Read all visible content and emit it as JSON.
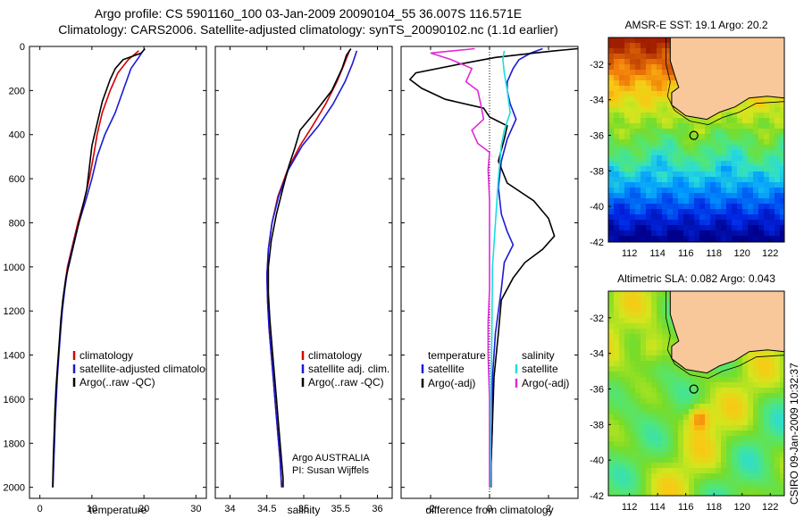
{
  "title_line1": "Argo profile: CS 5901160_100 03-Jan-2009 20090104_55 36.007S 116.571E",
  "title_line2": "Climatology: CARS2006. Satellite-adjusted climatology: synTS_20090102.nc (1.1d earlier)",
  "side_label": "CSIRO 09-Jan-2009 10:32:37",
  "depth_ticks": [
    0,
    200,
    400,
    600,
    800,
    1000,
    1200,
    1400,
    1600,
    1800,
    2000
  ],
  "colors": {
    "climatology": "#d40000",
    "satellite": "#1a1ad6",
    "argo": "#000000",
    "cyan": "#19dede",
    "magenta": "#e02ad8"
  },
  "chart_data": [
    {
      "type": "line",
      "xlabel": "temperature",
      "xlim": [
        -2,
        32
      ],
      "xticks": [
        0,
        10,
        20,
        30
      ],
      "ylim": [
        2050,
        0
      ],
      "legend": [
        "climatology",
        "satellite-adjusted climatology",
        "Argo(..raw -QC)"
      ],
      "series": [
        {
          "name": "climatology",
          "points": [
            [
              19,
              20
            ],
            [
              17,
              60
            ],
            [
              15,
              120
            ],
            [
              13.5,
              200
            ],
            [
              12,
              300
            ],
            [
              11,
              400
            ],
            [
              10.3,
              500
            ],
            [
              9.5,
              600
            ],
            [
              8.5,
              700
            ],
            [
              7.3,
              800
            ],
            [
              6.3,
              900
            ],
            [
              5.3,
              1000
            ],
            [
              4.7,
              1100
            ],
            [
              4.2,
              1200
            ],
            [
              3.9,
              1300
            ],
            [
              3.6,
              1400
            ],
            [
              3.3,
              1500
            ],
            [
              3.1,
              1600
            ],
            [
              2.9,
              1700
            ],
            [
              2.75,
              1800
            ],
            [
              2.6,
              1900
            ],
            [
              2.5,
              2000
            ]
          ]
        },
        {
          "name": "satellite-adjusted climatology",
          "points": [
            [
              19.8,
              20
            ],
            [
              19,
              50
            ],
            [
              17.5,
              100
            ],
            [
              16,
              200
            ],
            [
              14.5,
              300
            ],
            [
              12.5,
              400
            ],
            [
              11,
              500
            ],
            [
              10,
              600
            ],
            [
              8.8,
              700
            ],
            [
              7.5,
              800
            ],
            [
              6.4,
              900
            ],
            [
              5.4,
              1000
            ],
            [
              4.8,
              1100
            ],
            [
              4.3,
              1200
            ],
            [
              3.95,
              1300
            ],
            [
              3.65,
              1400
            ],
            [
              3.35,
              1500
            ],
            [
              3.15,
              1600
            ],
            [
              2.95,
              1700
            ],
            [
              2.8,
              1800
            ],
            [
              2.65,
              1900
            ],
            [
              2.5,
              2000
            ]
          ]
        },
        {
          "name": "Argo(..raw -QC)",
          "points": [
            [
              20.2,
              10
            ],
            [
              19.5,
              30
            ],
            [
              16,
              60
            ],
            [
              14.5,
              100
            ],
            [
              13.5,
              150
            ],
            [
              12,
              250
            ],
            [
              11,
              350
            ],
            [
              10,
              450
            ],
            [
              9.5,
              550
            ],
            [
              9,
              650
            ],
            [
              8,
              750
            ],
            [
              7,
              850
            ],
            [
              6,
              950
            ],
            [
              5,
              1050
            ],
            [
              4.4,
              1150
            ],
            [
              4,
              1250
            ],
            [
              3.7,
              1350
            ],
            [
              3.4,
              1450
            ],
            [
              3.1,
              1550
            ],
            [
              2.9,
              1650
            ],
            [
              2.75,
              1750
            ],
            [
              2.6,
              1850
            ],
            [
              2.5,
              1950
            ],
            [
              2.45,
              2000
            ]
          ]
        }
      ]
    },
    {
      "type": "line",
      "xlabel": "salinity",
      "xlim": [
        33.8,
        36.2
      ],
      "xticks": [
        34,
        34.5,
        35,
        35.5,
        36
      ],
      "ylim": [
        2050,
        0
      ],
      "legend": [
        "climatology",
        "satellite adj. clim.",
        "Argo(..raw -QC)"
      ],
      "annotation": [
        "Argo AUSTRALIA",
        "PI: Susan Wijffels"
      ],
      "series": [
        {
          "name": "climatology",
          "points": [
            [
              35.62,
              20
            ],
            [
              35.55,
              80
            ],
            [
              35.45,
              160
            ],
            [
              35.3,
              260
            ],
            [
              35.12,
              360
            ],
            [
              34.95,
              450
            ],
            [
              34.78,
              560
            ],
            [
              34.65,
              680
            ],
            [
              34.57,
              800
            ],
            [
              34.52,
              920
            ],
            [
              34.5,
              1040
            ],
            [
              34.51,
              1160
            ],
            [
              34.53,
              1280
            ],
            [
              34.56,
              1400
            ],
            [
              34.59,
              1520
            ],
            [
              34.62,
              1640
            ],
            [
              34.65,
              1760
            ],
            [
              34.68,
              1880
            ],
            [
              34.7,
              2000
            ]
          ]
        },
        {
          "name": "satellite adj. clim.",
          "points": [
            [
              35.72,
              20
            ],
            [
              35.66,
              80
            ],
            [
              35.56,
              160
            ],
            [
              35.4,
              260
            ],
            [
              35.2,
              360
            ],
            [
              34.98,
              450
            ],
            [
              34.79,
              560
            ],
            [
              34.66,
              680
            ],
            [
              34.57,
              800
            ],
            [
              34.52,
              920
            ],
            [
              34.5,
              1040
            ],
            [
              34.51,
              1160
            ],
            [
              34.53,
              1280
            ],
            [
              34.56,
              1400
            ],
            [
              34.59,
              1520
            ],
            [
              34.62,
              1640
            ],
            [
              34.65,
              1760
            ],
            [
              34.68,
              1880
            ],
            [
              34.7,
              2000
            ]
          ]
        },
        {
          "name": "Argo(..raw -QC)",
          "points": [
            [
              35.64,
              10
            ],
            [
              35.58,
              40
            ],
            [
              35.52,
              100
            ],
            [
              35.38,
              200
            ],
            [
              35.15,
              300
            ],
            [
              34.95,
              380
            ],
            [
              34.88,
              460
            ],
            [
              34.8,
              540
            ],
            [
              34.72,
              640
            ],
            [
              34.63,
              760
            ],
            [
              34.56,
              880
            ],
            [
              34.52,
              1000
            ],
            [
              34.52,
              1120
            ],
            [
              34.54,
              1240
            ],
            [
              34.57,
              1360
            ],
            [
              34.6,
              1480
            ],
            [
              34.63,
              1600
            ],
            [
              34.66,
              1720
            ],
            [
              34.69,
              1840
            ],
            [
              34.72,
              1960
            ],
            [
              34.72,
              2000
            ]
          ]
        }
      ]
    },
    {
      "type": "line",
      "xlabel": "difference from climatology",
      "xlim": [
        -3,
        3
      ],
      "xticks": [
        -2,
        0,
        2
      ],
      "ylim": [
        2050,
        0
      ],
      "legend_headers": [
        "temperature",
        "salinity"
      ],
      "legend": [
        "satellite",
        "Argo(-adj)",
        "satellite",
        "Argo(-adj)"
      ],
      "series": [
        {
          "name": "temperature satellite",
          "points": [
            [
              1.8,
              10
            ],
            [
              1.4,
              30
            ],
            [
              1,
              60
            ],
            [
              0.8,
              100
            ],
            [
              0.6,
              160
            ],
            [
              0.6,
              200
            ],
            [
              0.7,
              260
            ],
            [
              0.9,
              330
            ],
            [
              0.6,
              420
            ],
            [
              0.4,
              520
            ],
            [
              0.3,
              640
            ],
            [
              0.4,
              760
            ],
            [
              0.6,
              840
            ],
            [
              0.8,
              900
            ],
            [
              0.5,
              980
            ],
            [
              0.4,
              1100
            ],
            [
              0.2,
              1300
            ],
            [
              0.1,
              1500
            ],
            [
              0.1,
              1700
            ],
            [
              0.05,
              1900
            ],
            [
              0.05,
              2000
            ]
          ]
        },
        {
          "name": "temperature Argo(-adj)",
          "points": [
            [
              3,
              10
            ],
            [
              2.2,
              20
            ],
            [
              1.5,
              30
            ],
            [
              0.2,
              50
            ],
            [
              -1,
              80
            ],
            [
              -2.5,
              120
            ],
            [
              -2.7,
              150
            ],
            [
              -2.3,
              190
            ],
            [
              -1.5,
              240
            ],
            [
              -0.2,
              280
            ],
            [
              0,
              320
            ],
            [
              0.6,
              360
            ],
            [
              0.5,
              420
            ],
            [
              0.3,
              520
            ],
            [
              0.6,
              620
            ],
            [
              1.5,
              700
            ],
            [
              2,
              780
            ],
            [
              2.2,
              860
            ],
            [
              1.8,
              920
            ],
            [
              1.2,
              980
            ],
            [
              0.8,
              1050
            ],
            [
              0.4,
              1150
            ],
            [
              0.3,
              1300
            ],
            [
              0.15,
              1500
            ],
            [
              0.1,
              1700
            ],
            [
              0.05,
              1900
            ],
            [
              0.05,
              2000
            ]
          ]
        },
        {
          "name": "salinity satellite",
          "points": [
            [
              0.5,
              20
            ],
            [
              0.45,
              60
            ],
            [
              0.5,
              120
            ],
            [
              0.6,
              200
            ],
            [
              0.7,
              300
            ],
            [
              0.5,
              380
            ],
            [
              0.4,
              450
            ],
            [
              0.3,
              600
            ],
            [
              0.2,
              800
            ],
            [
              0.1,
              1000
            ],
            [
              0.08,
              1300
            ],
            [
              0.05,
              1600
            ],
            [
              0.03,
              2000
            ]
          ]
        },
        {
          "name": "salinity Argo(-adj)",
          "points": [
            [
              -0.5,
              10
            ],
            [
              -2,
              30
            ],
            [
              -1.3,
              60
            ],
            [
              -0.6,
              100
            ],
            [
              -0.8,
              160
            ],
            [
              -0.4,
              200
            ],
            [
              -0.3,
              260
            ],
            [
              -0.2,
              330
            ],
            [
              -0.6,
              380
            ],
            [
              -0.4,
              440
            ],
            [
              0,
              480
            ],
            [
              -0.05,
              560
            ],
            [
              0,
              700
            ],
            [
              0,
              900
            ],
            [
              0,
              1100
            ],
            [
              -0.05,
              1250
            ],
            [
              -0.05,
              1400
            ],
            [
              0,
              1600
            ],
            [
              0,
              1800
            ],
            [
              0,
              2000
            ]
          ]
        }
      ]
    },
    {
      "type": "heatmap",
      "title": "AMSR-E SST: 19.1 Argo: 20.2",
      "xlim": [
        110.5,
        123
      ],
      "ylim": [
        -42,
        -30.5
      ],
      "xticks": [
        112,
        114,
        116,
        118,
        120,
        122
      ],
      "yticks": [
        -32,
        -34,
        -36,
        -38,
        -40,
        -42
      ],
      "marker": [
        116.571,
        -36.007
      ]
    },
    {
      "type": "heatmap",
      "title": "Altimetric SLA: 0.082 Argo: 0.043",
      "xlim": [
        110.5,
        123
      ],
      "ylim": [
        -42,
        -30.5
      ],
      "xticks": [
        112,
        114,
        116,
        118,
        120,
        122
      ],
      "yticks": [
        -32,
        -34,
        -36,
        -38,
        -40,
        -42
      ],
      "marker": [
        116.571,
        -36.007
      ]
    }
  ]
}
